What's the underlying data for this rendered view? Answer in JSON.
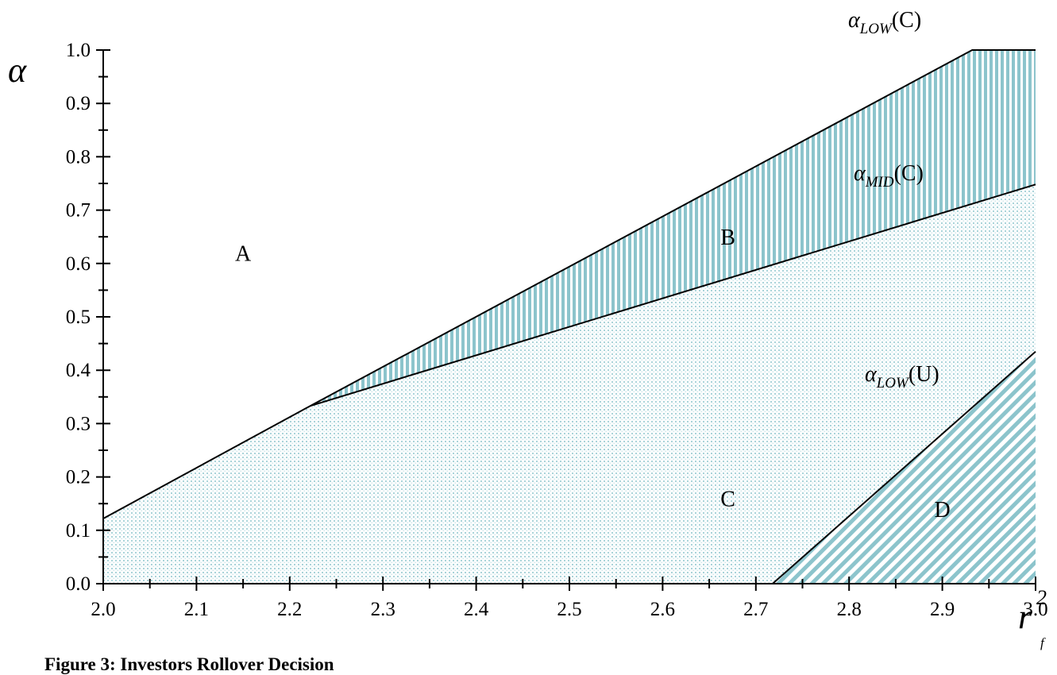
{
  "caption": "Figure 3: Investors Rollover Decision",
  "chart_data": {
    "type": "area",
    "xlabel": "r",
    "xlabel_superscript": "2",
    "xlabel_subscript": "f",
    "ylabel": "α",
    "xlim": [
      2.0,
      3.0
    ],
    "ylim": [
      0.0,
      1.0
    ],
    "x_ticks": [
      "2.0",
      "2.1",
      "2.2",
      "2.3",
      "2.4",
      "2.5",
      "2.6",
      "2.7",
      "2.8",
      "2.9",
      "3.0"
    ],
    "y_ticks": [
      "0.0",
      "0.1",
      "0.2",
      "0.3",
      "0.4",
      "0.5",
      "0.6",
      "0.7",
      "0.8",
      "0.9",
      "1.0"
    ],
    "curves": [
      {
        "label_greek": "α",
        "label_sub": "LOW",
        "label_arg": "(C)",
        "x": [
          2.0,
          2.222,
          2.932,
          3.0
        ],
        "y": [
          0.122,
          0.333,
          1.0,
          1.0
        ]
      },
      {
        "label_greek": "α",
        "label_sub": "MID",
        "label_arg": "(C)",
        "x": [
          2.222,
          3.0
        ],
        "y": [
          0.333,
          0.748
        ]
      },
      {
        "label_greek": "α",
        "label_sub": "LOW",
        "label_arg": "(U)",
        "x": [
          2.718,
          3.0
        ],
        "y": [
          0.0,
          0.435
        ]
      }
    ],
    "regions": [
      {
        "label": "A",
        "x": 2.15,
        "y": 0.62
      },
      {
        "label": "B",
        "x": 2.67,
        "y": 0.65
      },
      {
        "label": "C",
        "x": 2.67,
        "y": 0.16
      },
      {
        "label": "D",
        "x": 2.9,
        "y": 0.14
      }
    ],
    "colors": {
      "fill": "#8cc4cc",
      "line": "#000000"
    }
  }
}
